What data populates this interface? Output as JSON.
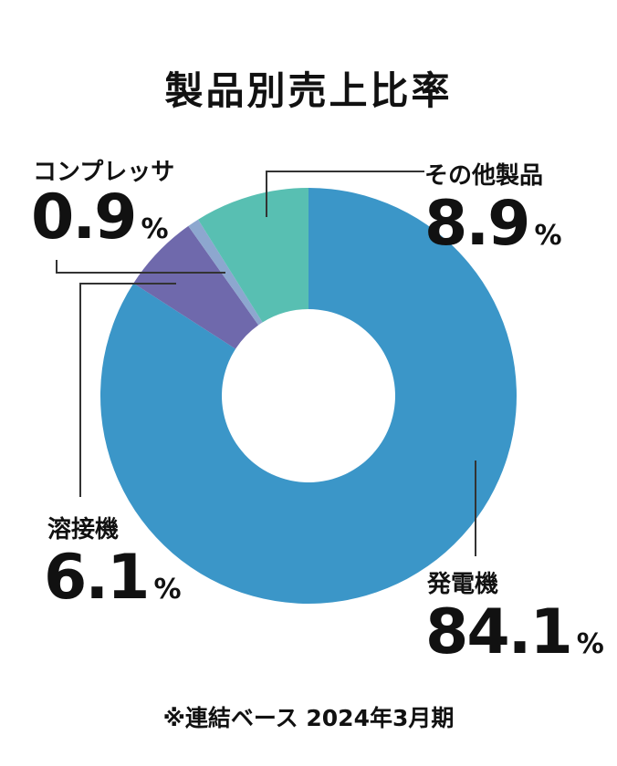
{
  "chart_data": {
    "type": "pie",
    "title": "製品別売上比率",
    "unit": "%",
    "slices": [
      {
        "name": "発電機",
        "value": 84.1,
        "value_label": "84.1",
        "color": "#3b96c8"
      },
      {
        "name": "溶接機",
        "value": 6.1,
        "value_label": "6.1",
        "color": "#6f69ac"
      },
      {
        "name": "コンプレッサ",
        "value": 0.9,
        "value_label": "0.9",
        "color": "#8da7cf"
      },
      {
        "name": "その他製品",
        "value": 8.9,
        "value_label": "8.9",
        "color": "#58bfb2"
      }
    ],
    "footnote": "※連結ベース 2024年3月期"
  }
}
